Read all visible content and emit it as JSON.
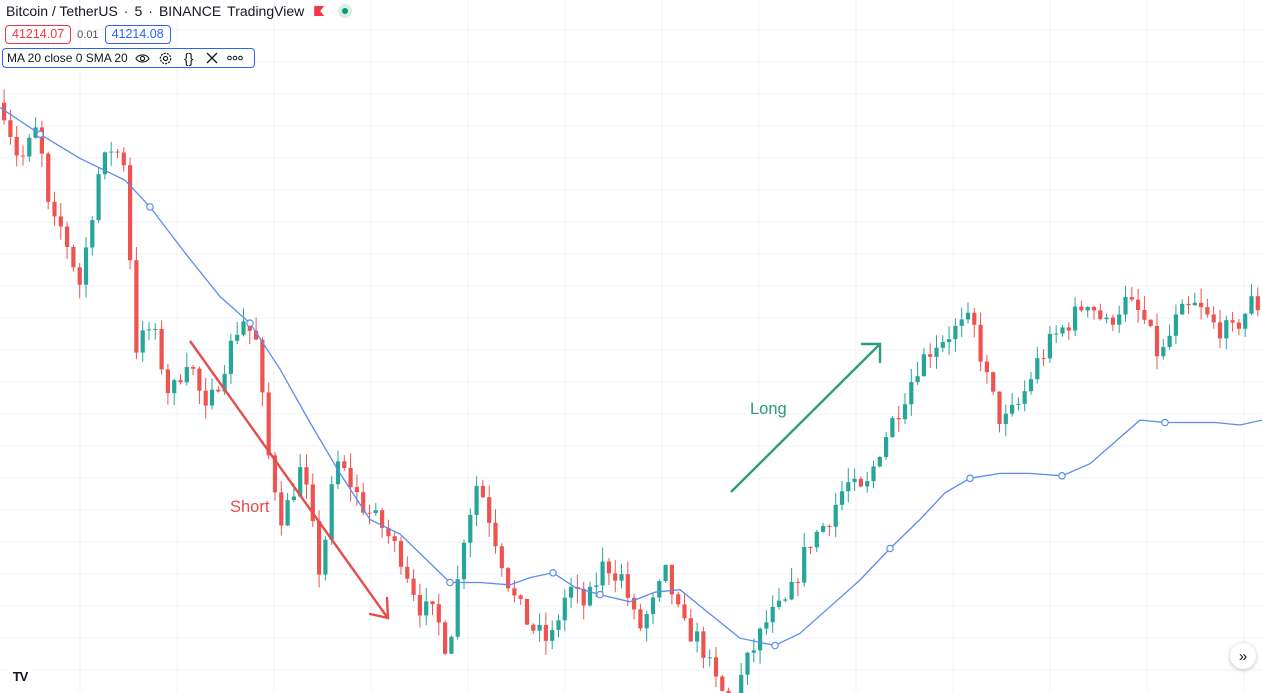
{
  "header": {
    "symbol": "Bitcoin / TetherUS",
    "interval": "5",
    "exchange": "BINANCE",
    "brand": "TradingView",
    "flag_icon": "flag-icon",
    "status_icon": "market-open-dot-icon",
    "sell_price": "41214.07",
    "spread": "0.01",
    "buy_price": "41214.08"
  },
  "indicator": {
    "label": "MA 20 close 0 SMA 20",
    "icons": [
      "eye-icon",
      "gear-icon",
      "braces-icon",
      "close-icon",
      "more-icon"
    ]
  },
  "annotations": {
    "short_label": "Short",
    "long_label": "Long",
    "short_color": "#e64c4c",
    "long_color": "#2a9d7a"
  },
  "colors": {
    "up": "#26a69a",
    "down": "#ef5350",
    "ma_line": "#5b8def",
    "grid": "#f0f3fa"
  },
  "footer": {
    "logo_text": "TV",
    "scroll_icon": "chevrons-right-icon"
  },
  "chart_data": {
    "type": "candlestick",
    "title": "",
    "xlabel": "",
    "ylabel": "",
    "ylim": [
      39300,
      41900
    ],
    "grid": true,
    "ohlc_points": [
      [
        0,
        41600
      ],
      [
        18,
        41350
      ],
      [
        36,
        41500
      ],
      [
        48,
        41100
      ],
      [
        60,
        41080
      ],
      [
        78,
        40850
      ],
      [
        96,
        41300
      ],
      [
        110,
        41420
      ],
      [
        124,
        41350
      ],
      [
        132,
        40580
      ],
      [
        150,
        40680
      ],
      [
        168,
        40380
      ],
      [
        186,
        40560
      ],
      [
        204,
        40310
      ],
      [
        222,
        40520
      ],
      [
        240,
        40720
      ],
      [
        254,
        40610
      ],
      [
        266,
        40150
      ],
      [
        280,
        39880
      ],
      [
        300,
        40100
      ],
      [
        318,
        39650
      ],
      [
        334,
        40120
      ],
      [
        346,
        40050
      ],
      [
        360,
        39940
      ],
      [
        380,
        39850
      ],
      [
        400,
        39720
      ],
      [
        418,
        39520
      ],
      [
        434,
        39480
      ],
      [
        446,
        39330
      ],
      [
        462,
        39820
      ],
      [
        476,
        40050
      ],
      [
        492,
        39820
      ],
      [
        510,
        39570
      ],
      [
        528,
        39440
      ],
      [
        548,
        39370
      ],
      [
        566,
        39600
      ],
      [
        584,
        39520
      ],
      [
        602,
        39700
      ],
      [
        620,
        39640
      ],
      [
        636,
        39420
      ],
      [
        650,
        39520
      ],
      [
        664,
        39660
      ],
      [
        680,
        39440
      ],
      [
        698,
        39380
      ],
      [
        712,
        39220
      ],
      [
        728,
        39110
      ],
      [
        746,
        39300
      ],
      [
        766,
        39470
      ],
      [
        786,
        39540
      ],
      [
        806,
        39780
      ],
      [
        826,
        39880
      ],
      [
        844,
        40030
      ],
      [
        862,
        39980
      ],
      [
        880,
        40200
      ],
      [
        898,
        40350
      ],
      [
        916,
        40520
      ],
      [
        934,
        40610
      ],
      [
        952,
        40660
      ],
      [
        970,
        40700
      ],
      [
        986,
        40440
      ],
      [
        1000,
        40270
      ],
      [
        1018,
        40360
      ],
      [
        1034,
        40520
      ],
      [
        1050,
        40620
      ],
      [
        1068,
        40700
      ],
      [
        1086,
        40790
      ],
      [
        1104,
        40680
      ],
      [
        1122,
        40780
      ],
      [
        1140,
        40720
      ],
      [
        1158,
        40540
      ],
      [
        1176,
        40720
      ],
      [
        1194,
        40760
      ],
      [
        1212,
        40680
      ],
      [
        1230,
        40650
      ],
      [
        1250,
        40780
      ],
      [
        1262,
        40740
      ]
    ],
    "ma_points": [
      [
        0,
        41580
      ],
      [
        40,
        41470
      ],
      [
        80,
        41370
      ],
      [
        125,
        41280
      ],
      [
        150,
        41170
      ],
      [
        185,
        40980
      ],
      [
        220,
        40800
      ],
      [
        250,
        40690
      ],
      [
        280,
        40500
      ],
      [
        310,
        40280
      ],
      [
        340,
        40070
      ],
      [
        370,
        39880
      ],
      [
        400,
        39820
      ],
      [
        430,
        39700
      ],
      [
        450,
        39620
      ],
      [
        480,
        39620
      ],
      [
        510,
        39610
      ],
      [
        530,
        39640
      ],
      [
        553,
        39660
      ],
      [
        575,
        39600
      ],
      [
        600,
        39570
      ],
      [
        630,
        39540
      ],
      [
        655,
        39580
      ],
      [
        680,
        39590
      ],
      [
        710,
        39490
      ],
      [
        740,
        39390
      ],
      [
        775,
        39360
      ],
      [
        800,
        39410
      ],
      [
        830,
        39520
      ],
      [
        860,
        39630
      ],
      [
        890,
        39760
      ],
      [
        920,
        39880
      ],
      [
        945,
        39990
      ],
      [
        970,
        40050
      ],
      [
        1000,
        40070
      ],
      [
        1030,
        40070
      ],
      [
        1062,
        40060
      ],
      [
        1090,
        40110
      ],
      [
        1115,
        40200
      ],
      [
        1140,
        40290
      ],
      [
        1165,
        40280
      ],
      [
        1190,
        40280
      ],
      [
        1215,
        40280
      ],
      [
        1240,
        40270
      ],
      [
        1262,
        40290
      ]
    ]
  }
}
